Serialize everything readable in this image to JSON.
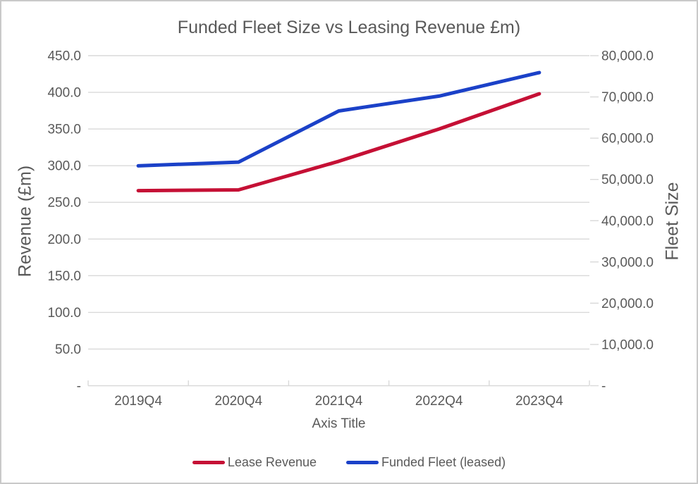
{
  "chart_data": {
    "type": "line",
    "title": "Funded Fleet Size vs Leasing Revenue £m)",
    "categories": [
      "2019Q4",
      "2020Q4",
      "2021Q4",
      "2022Q4",
      "2023Q4"
    ],
    "series": [
      {
        "name": "Lease Revenue",
        "axis": "left",
        "color": "#c51035",
        "values": [
          266,
          267,
          306,
          350,
          398
        ]
      },
      {
        "name": "Funded Fleet (leased)",
        "axis": "right",
        "color": "#1b41c8",
        "values": [
          53300,
          54200,
          66600,
          70200,
          75900
        ]
      }
    ],
    "x_axis": {
      "title": "Axis Title",
      "tick_labels": [
        "2019Q4",
        "2020Q4",
        "2021Q4",
        "2022Q4",
        "2023Q4"
      ]
    },
    "left_axis": {
      "title": "Revenue (£m)",
      "min": 0,
      "max": 450,
      "step": 50,
      "tick_labels": [
        "450.0",
        "400.0",
        "350.0",
        "300.0",
        "250.0",
        "200.0",
        "150.0",
        "100.0",
        "50.0",
        "-"
      ]
    },
    "right_axis": {
      "title": "Fleet Size",
      "min": 0,
      "max": 80000,
      "step": 10000,
      "tick_labels": [
        "80,000.0",
        "70,000.0",
        "60,000.0",
        "50,000.0",
        "40,000.0",
        "30,000.0",
        "20,000.0",
        "10,000.0",
        "-"
      ]
    },
    "legend_position": "bottom",
    "grid": true
  },
  "colors": {
    "text": "#595959",
    "gridline": "#d9d9d9",
    "axis_line": "#d9d9d9",
    "tick": "#d9d9d9",
    "background": "#ffffff",
    "frame_border": "#c9c9c9",
    "series_red": "#c51035",
    "series_blue": "#1b41c8"
  }
}
